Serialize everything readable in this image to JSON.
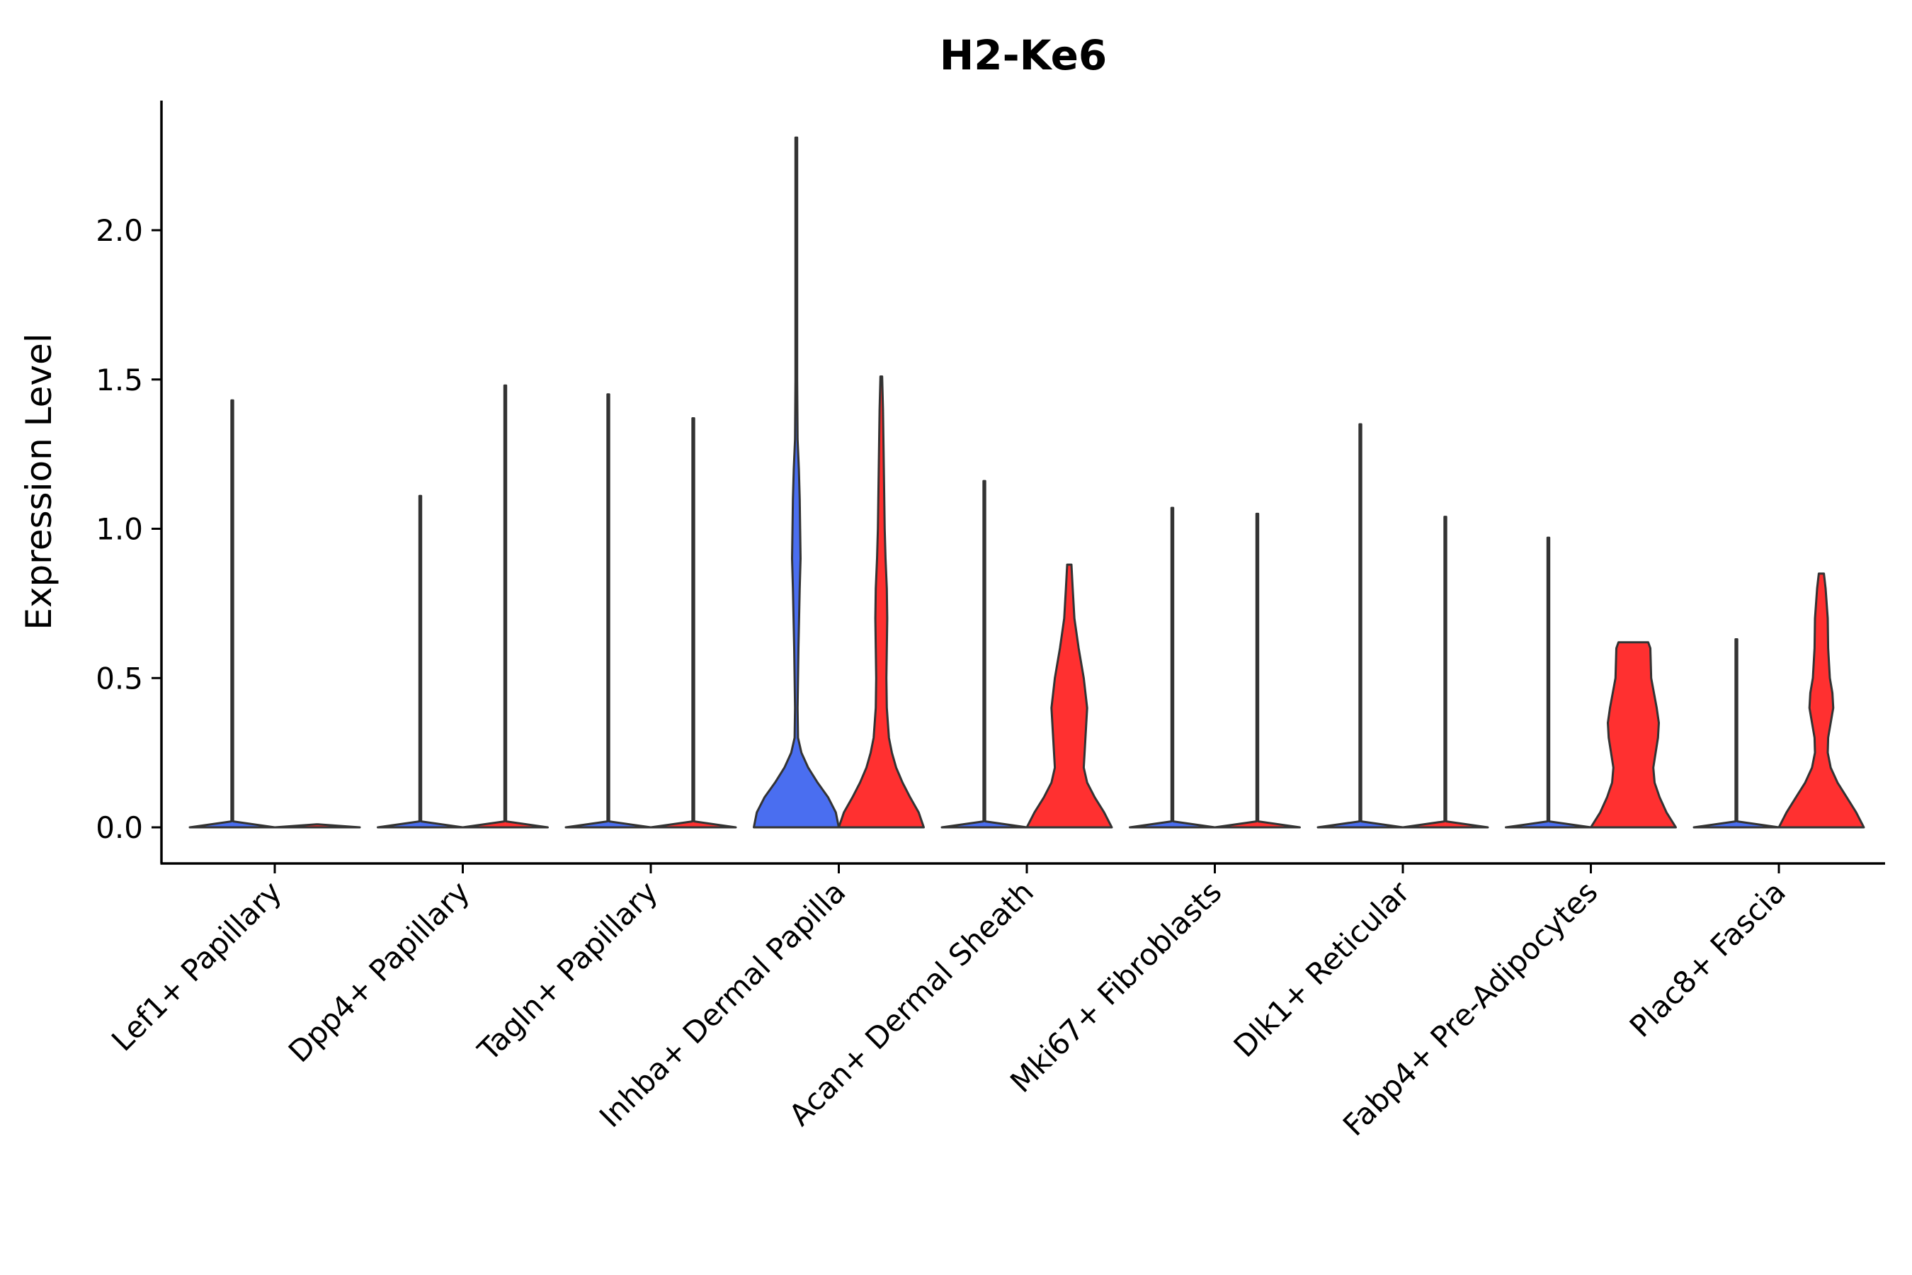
{
  "chart_data": {
    "type": "violin",
    "title": "H2-Ke6",
    "xlabel": "",
    "ylabel": "Expression Level",
    "ylim": [
      -0.115,
      2.42
    ],
    "y_ticks": [
      "0.0",
      "0.5",
      "1.0",
      "1.5",
      "2.0"
    ],
    "y_tick_values": [
      0,
      0.5,
      1.0,
      1.5,
      2.0
    ],
    "grid": false,
    "legend": "none",
    "colors": {
      "group_a": "#4a6ef0",
      "group_b": "#ff3030",
      "outline": "#333333"
    },
    "categories": [
      "Lef1+ Papillary",
      "Dpp4+ Papillary",
      "Tagln+ Papillary",
      "Inhba+ Dermal Papilla",
      "Acan+ Dermal Sheath",
      "Mki67+ Fibroblasts",
      "Dlk1+ Reticular",
      "Fabp4+ Pre-Adipocytes",
      "Plac8+ Fascia"
    ],
    "series": [
      {
        "name": "group_a",
        "color": "#4a6ef0",
        "max_values": [
          1.43,
          1.11,
          1.45,
          2.31,
          1.16,
          1.07,
          1.35,
          0.97,
          0.63
        ],
        "profiles": [
          [
            [
              0,
              1
            ],
            [
              0.02,
              0.02
            ],
            [
              0.05,
              0.004
            ],
            [
              1.43,
              0.002
            ]
          ],
          [
            [
              0,
              1
            ],
            [
              0.02,
              0.02
            ],
            [
              0.05,
              0.004
            ],
            [
              1.11,
              0.002
            ]
          ],
          [
            [
              0,
              1
            ],
            [
              0.02,
              0.02
            ],
            [
              0.05,
              0.004
            ],
            [
              1.45,
              0.002
            ]
          ],
          [
            [
              0,
              1
            ],
            [
              0.05,
              0.93
            ],
            [
              0.1,
              0.75
            ],
            [
              0.15,
              0.5
            ],
            [
              0.2,
              0.28
            ],
            [
              0.25,
              0.12
            ],
            [
              0.3,
              0.04
            ],
            [
              0.4,
              0.03
            ],
            [
              0.6,
              0.05
            ],
            [
              0.8,
              0.08
            ],
            [
              0.9,
              0.1
            ],
            [
              1.0,
              0.09
            ],
            [
              1.1,
              0.08
            ],
            [
              1.2,
              0.06
            ],
            [
              1.3,
              0.03
            ],
            [
              1.5,
              0.02
            ],
            [
              1.8,
              0.015
            ],
            [
              2.31,
              0.005
            ]
          ],
          [
            [
              0,
              1
            ],
            [
              0.02,
              0.02
            ],
            [
              0.05,
              0.004
            ],
            [
              1.16,
              0.002
            ]
          ],
          [
            [
              0,
              1
            ],
            [
              0.02,
              0.02
            ],
            [
              0.05,
              0.004
            ],
            [
              1.07,
              0.002
            ]
          ],
          [
            [
              0,
              1
            ],
            [
              0.02,
              0.02
            ],
            [
              0.05,
              0.004
            ],
            [
              1.35,
              0.002
            ]
          ],
          [
            [
              0,
              1
            ],
            [
              0.02,
              0.02
            ],
            [
              0.05,
              0.004
            ],
            [
              0.97,
              0.002
            ]
          ],
          [
            [
              0,
              1
            ],
            [
              0.02,
              0.02
            ],
            [
              0.05,
              0.004
            ],
            [
              0.63,
              0.002
            ]
          ]
        ]
      },
      {
        "name": "group_b",
        "color": "#ff3030",
        "max_values": [
          0.0,
          1.48,
          1.37,
          1.51,
          0.88,
          1.05,
          1.04,
          0.62,
          0.85
        ],
        "profiles": [
          [
            [
              0,
              1
            ],
            [
              0.01,
              0.01
            ]
          ],
          [
            [
              0,
              1
            ],
            [
              0.02,
              0.02
            ],
            [
              0.05,
              0.004
            ],
            [
              1.48,
              0.002
            ]
          ],
          [
            [
              0,
              1
            ],
            [
              0.02,
              0.02
            ],
            [
              0.05,
              0.004
            ],
            [
              1.37,
              0.002
            ]
          ],
          [
            [
              0,
              1
            ],
            [
              0.05,
              0.88
            ],
            [
              0.1,
              0.68
            ],
            [
              0.15,
              0.5
            ],
            [
              0.2,
              0.35
            ],
            [
              0.25,
              0.25
            ],
            [
              0.3,
              0.18
            ],
            [
              0.4,
              0.13
            ],
            [
              0.5,
              0.12
            ],
            [
              0.6,
              0.13
            ],
            [
              0.7,
              0.14
            ],
            [
              0.8,
              0.13
            ],
            [
              0.9,
              0.1
            ],
            [
              1.0,
              0.08
            ],
            [
              1.2,
              0.06
            ],
            [
              1.4,
              0.04
            ],
            [
              1.51,
              0.01
            ]
          ],
          [
            [
              0,
              1
            ],
            [
              0.05,
              0.82
            ],
            [
              0.1,
              0.6
            ],
            [
              0.15,
              0.42
            ],
            [
              0.2,
              0.34
            ],
            [
              0.3,
              0.38
            ],
            [
              0.4,
              0.42
            ],
            [
              0.5,
              0.34
            ],
            [
              0.6,
              0.22
            ],
            [
              0.7,
              0.12
            ],
            [
              0.8,
              0.08
            ],
            [
              0.88,
              0.05
            ]
          ],
          [
            [
              0,
              1
            ],
            [
              0.02,
              0.02
            ],
            [
              0.05,
              0.004
            ],
            [
              1.05,
              0.002
            ]
          ],
          [
            [
              0,
              1
            ],
            [
              0.02,
              0.02
            ],
            [
              0.05,
              0.004
            ],
            [
              1.04,
              0.002
            ]
          ],
          [
            [
              0,
              1
            ],
            [
              0.05,
              0.78
            ],
            [
              0.1,
              0.62
            ],
            [
              0.15,
              0.5
            ],
            [
              0.2,
              0.47
            ],
            [
              0.3,
              0.58
            ],
            [
              0.35,
              0.6
            ],
            [
              0.4,
              0.55
            ],
            [
              0.5,
              0.42
            ],
            [
              0.6,
              0.4
            ],
            [
              0.62,
              0.35
            ]
          ],
          [
            [
              0,
              1
            ],
            [
              0.05,
              0.82
            ],
            [
              0.1,
              0.6
            ],
            [
              0.15,
              0.38
            ],
            [
              0.2,
              0.22
            ],
            [
              0.25,
              0.15
            ],
            [
              0.3,
              0.16
            ],
            [
              0.35,
              0.22
            ],
            [
              0.4,
              0.28
            ],
            [
              0.45,
              0.26
            ],
            [
              0.5,
              0.2
            ],
            [
              0.6,
              0.16
            ],
            [
              0.7,
              0.15
            ],
            [
              0.8,
              0.1
            ],
            [
              0.85,
              0.06
            ]
          ]
        ]
      }
    ]
  }
}
